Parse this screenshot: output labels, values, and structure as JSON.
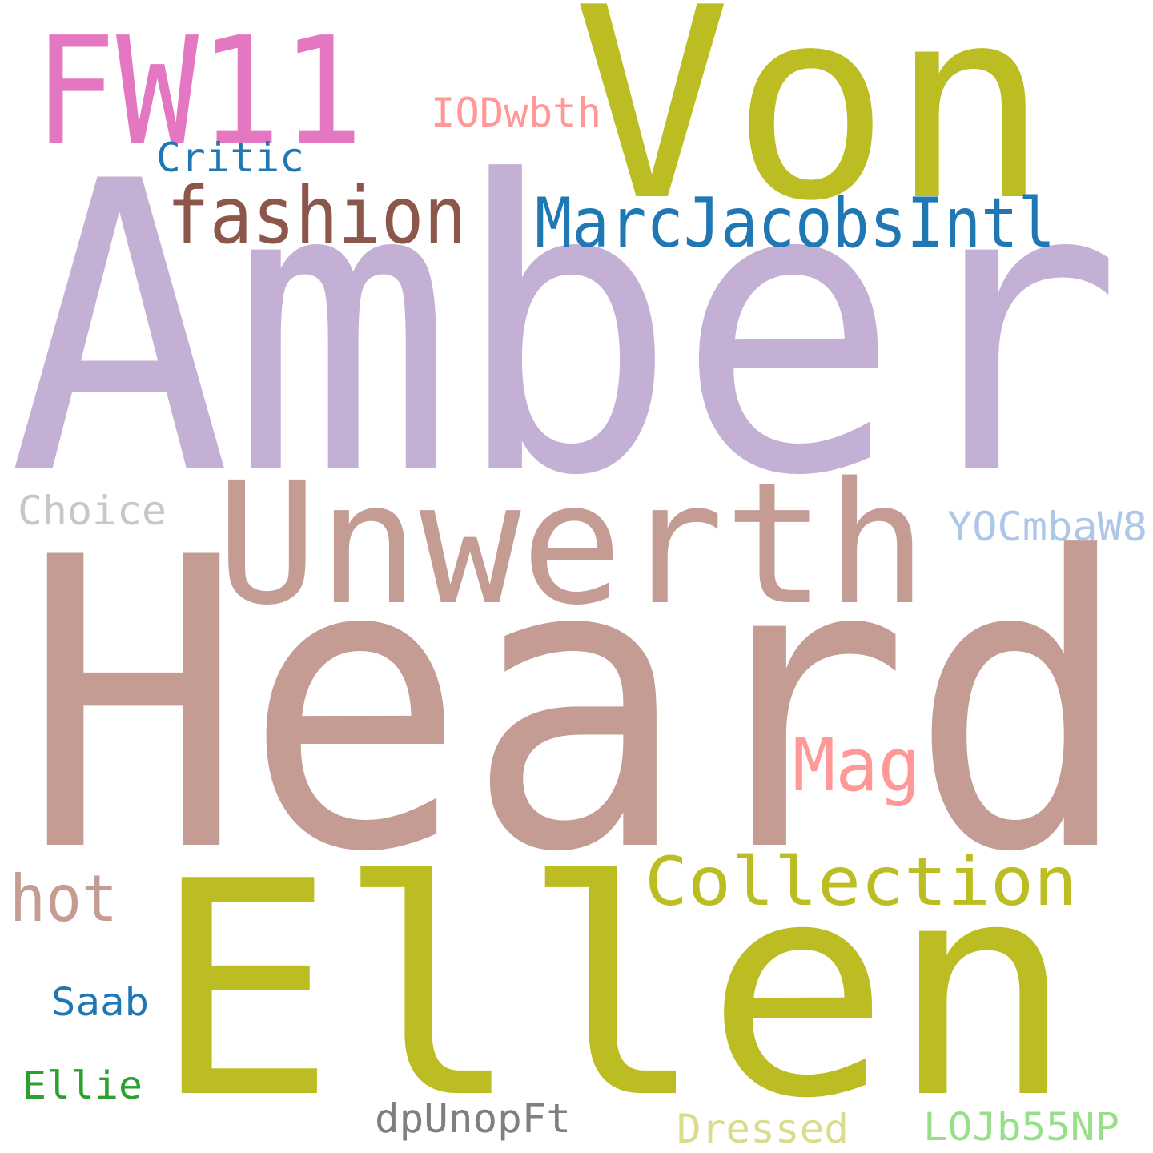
{
  "words": [
    {
      "id": "amber",
      "text": "Amber",
      "color": "#c5b0d5"
    },
    {
      "id": "heard",
      "text": "Heard",
      "color": "#c49c94"
    },
    {
      "id": "von",
      "text": "Von",
      "color": "#bcbd22"
    },
    {
      "id": "ellen",
      "text": "Ellen",
      "color": "#bcbd22"
    },
    {
      "id": "unwerth",
      "text": "Unwerth",
      "color": "#c49c94"
    },
    {
      "id": "fw11",
      "text": "FW11",
      "color": "#e377c2"
    },
    {
      "id": "fashion",
      "text": "fashion",
      "color": "#8c564b"
    },
    {
      "id": "marcjacobsintl",
      "text": "MarcJacobsIntl",
      "color": "#1f77b4"
    },
    {
      "id": "collection",
      "text": "Collection",
      "color": "#bcbd22"
    },
    {
      "id": "mag",
      "text": "Mag",
      "color": "#ff9896"
    },
    {
      "id": "hot",
      "text": "hot",
      "color": "#c49c94"
    },
    {
      "id": "iodwbth",
      "text": "IODwbth",
      "color": "#ff9896"
    },
    {
      "id": "critic",
      "text": "Critic",
      "color": "#1f77b4"
    },
    {
      "id": "choice",
      "text": "Choice",
      "color": "#c7c7c7"
    },
    {
      "id": "yocmbaw8",
      "text": "YOCmbaW8",
      "color": "#aec7e8"
    },
    {
      "id": "saab",
      "text": "Saab",
      "color": "#1f77b4"
    },
    {
      "id": "ellie",
      "text": "Ellie",
      "color": "#2ca02c"
    },
    {
      "id": "dpunopft",
      "text": "dpUnopFt",
      "color": "#7f7f7f"
    },
    {
      "id": "dressed",
      "text": "Dressed",
      "color": "#dbdb8d"
    },
    {
      "id": "lojb55np",
      "text": "LOJb55NP",
      "color": "#98df8a"
    }
  ]
}
